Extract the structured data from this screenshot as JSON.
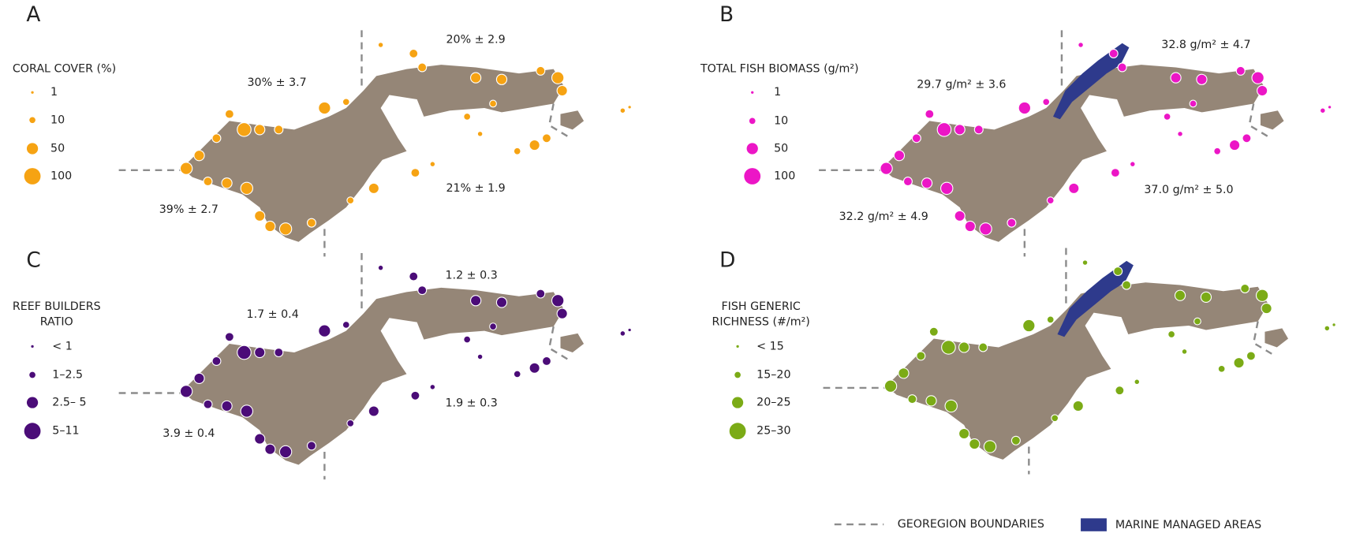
{
  "panels": [
    {
      "letter": "A",
      "legend_title": [
        "CORAL COVER (%)"
      ],
      "legend_items": [
        "1",
        "10",
        "50",
        "100"
      ],
      "stats": [
        "30% ± 3.7",
        "20% ± 2.9",
        "21% ± 1.9",
        "39% ± 2.7"
      ]
    },
    {
      "letter": "B",
      "legend_title": [
        "TOTAL FISH BIOMASS (g/m²)"
      ],
      "legend_items": [
        "1",
        "10",
        "50",
        "100"
      ],
      "stats": [
        "29.7 g/m² ± 3.6",
        "32.8 g/m² ± 4.7",
        "37.0 g/m² ± 5.0",
        "32.2 g/m² ± 4.9"
      ]
    },
    {
      "letter": "C",
      "legend_title": [
        "REEF BUILDERS",
        "RATIO"
      ],
      "legend_items": [
        "< 1",
        "1–2.5",
        "2.5– 5",
        "5–11"
      ],
      "stats": [
        "1.7 ± 0.4",
        "1.2 ± 0.3",
        "1.9 ± 0.3",
        "3.9 ± 0.4"
      ]
    },
    {
      "letter": "D",
      "legend_title": [
        "FISH GENERIC",
        "RICHNESS (#/m²)"
      ],
      "legend_items": [
        "< 15",
        "15–20",
        "20–25",
        "25–30"
      ],
      "stats": []
    }
  ],
  "footer_legend": [
    "GEOREGION BOUNDARIES",
    "MARINE MANAGED AREAS"
  ]
}
